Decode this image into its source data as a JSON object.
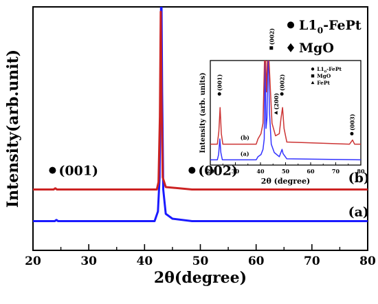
{
  "chart_data": [
    {
      "type": "line",
      "xlabel": "2θ(degree)",
      "ylabel": "Intensity(arb.unit)",
      "xlim": [
        20,
        80
      ],
      "xticks": [
        20,
        30,
        40,
        50,
        60,
        70,
        80
      ],
      "series": [
        {
          "name": "(a)",
          "color": "#1a1aff",
          "baseline": 0.12,
          "points": [
            [
              20,
              0.12
            ],
            [
              23.9,
              0.12
            ],
            [
              24.2,
              0.125
            ],
            [
              24.5,
              0.12
            ],
            [
              41.8,
              0.12
            ],
            [
              42.4,
              0.16
            ],
            [
              42.7,
              0.3
            ],
            [
              42.85,
              0.7
            ],
            [
              43.0,
              1.15
            ],
            [
              43.15,
              0.65
            ],
            [
              43.35,
              0.25
            ],
            [
              43.8,
              0.15
            ],
            [
              45,
              0.13
            ],
            [
              48.5,
              0.12
            ],
            [
              80,
              0.12
            ]
          ]
        },
        {
          "name": "(b)",
          "color": "#cc2222",
          "baseline": 0.25,
          "points": [
            [
              20,
              0.25
            ],
            [
              23.7,
              0.25
            ],
            [
              24.0,
              0.255
            ],
            [
              24.3,
              0.25
            ],
            [
              42.2,
              0.25
            ],
            [
              42.5,
              0.28
            ],
            [
              42.75,
              0.55
            ],
            [
              42.9,
              0.98
            ],
            [
              43.05,
              0.6
            ],
            [
              43.25,
              0.3
            ],
            [
              43.8,
              0.26
            ],
            [
              48.5,
              0.25
            ],
            [
              80,
              0.25
            ]
          ]
        }
      ],
      "peak_labels": [
        {
          "x": 23.5,
          "y": 0.31,
          "marker": "●",
          "text": "(001)"
        },
        {
          "x": 48.5,
          "y": 0.31,
          "marker": "●",
          "text": "(002)"
        },
        {
          "x": 44.0,
          "y": 1.08,
          "marker": "◆",
          "text": "(002)"
        }
      ],
      "curve_labels": [
        {
          "x": 76.5,
          "y": 0.28,
          "text": "(b)"
        },
        {
          "x": 76.5,
          "y": 0.14,
          "text": "(a)"
        }
      ],
      "legend": {
        "placement": "top-right",
        "items": [
          {
            "marker": "●",
            "text": "L1",
            "sub": "0",
            "suffix": "-FePt"
          },
          {
            "marker": "◆",
            "text": "MgO"
          }
        ]
      }
    },
    {
      "type": "line",
      "placement": "inset top-right",
      "xlabel": "2θ (degree)",
      "ylabel": "Intensity (arb. units)",
      "xlim": [
        20,
        80
      ],
      "xticks": [
        20,
        30,
        40,
        50,
        60,
        70,
        80
      ],
      "series": [
        {
          "name": "(a)",
          "color": "#3333ff",
          "points": [
            [
              20,
              0.05
            ],
            [
              22.8,
              0.05
            ],
            [
              23.3,
              0.1
            ],
            [
              23.8,
              0.25
            ],
            [
              24.2,
              0.12
            ],
            [
              24.8,
              0.05
            ],
            [
              38.3,
              0.05
            ],
            [
              39.0,
              0.08
            ],
            [
              40.2,
              0.1
            ],
            [
              41.0,
              0.15
            ],
            [
              41.5,
              0.25
            ],
            [
              41.8,
              1.05
            ],
            [
              42.2,
              0.35
            ],
            [
              42.6,
              0.45
            ],
            [
              43.0,
              1.2
            ],
            [
              43.6,
              0.5
            ],
            [
              44.3,
              0.2
            ],
            [
              45.5,
              0.12
            ],
            [
              47.5,
              0.08
            ],
            [
              48.6,
              0.15
            ],
            [
              49.0,
              0.11
            ],
            [
              50.5,
              0.06
            ],
            [
              80,
              0.05
            ]
          ]
        },
        {
          "name": "(b)",
          "color": "#cc3333",
          "points": [
            [
              20,
              0.2
            ],
            [
              22.8,
              0.2
            ],
            [
              23.4,
              0.32
            ],
            [
              23.9,
              0.55
            ],
            [
              24.4,
              0.3
            ],
            [
              25.0,
              0.2
            ],
            [
              38.3,
              0.2
            ],
            [
              39.0,
              0.25
            ],
            [
              40.2,
              0.3
            ],
            [
              41.0,
              0.4
            ],
            [
              41.8,
              1.2
            ],
            [
              42.4,
              0.7
            ],
            [
              43.0,
              1.2
            ],
            [
              43.8,
              0.8
            ],
            [
              44.6,
              0.4
            ],
            [
              46.0,
              0.28
            ],
            [
              47.5,
              0.3
            ],
            [
              48.2,
              0.45
            ],
            [
              48.8,
              0.55
            ],
            [
              49.4,
              0.35
            ],
            [
              50.5,
              0.22
            ],
            [
              75.5,
              0.2
            ],
            [
              76.7,
              0.24
            ],
            [
              77.5,
              0.2
            ],
            [
              80,
              0.2
            ]
          ]
        }
      ],
      "peak_labels": [
        {
          "x": 23.9,
          "y": 0.68,
          "marker": "●",
          "text": "(001)"
        },
        {
          "x": 46.5,
          "y": 0.5,
          "marker": "▲",
          "text": "(200)"
        },
        {
          "x": 48.8,
          "y": 0.68,
          "marker": "●",
          "text": "(002)"
        },
        {
          "x": 44.6,
          "y": 1.12,
          "marker": "■",
          "text": "(002)"
        },
        {
          "x": 76.7,
          "y": 0.3,
          "marker": "●",
          "text": "(003)"
        }
      ],
      "curve_labels": [
        {
          "x": 32.0,
          "y": 0.245,
          "text": "(b)"
        },
        {
          "x": 32.0,
          "y": 0.09,
          "text": "(a)"
        }
      ],
      "legend": {
        "placement": "top-right",
        "items": [
          {
            "marker": "●",
            "text": "L1",
            "sub": "0",
            "suffix": "-FePt"
          },
          {
            "marker": "■",
            "text": "MgO"
          },
          {
            "marker": "▲",
            "text": "FePt"
          }
        ]
      }
    }
  ]
}
